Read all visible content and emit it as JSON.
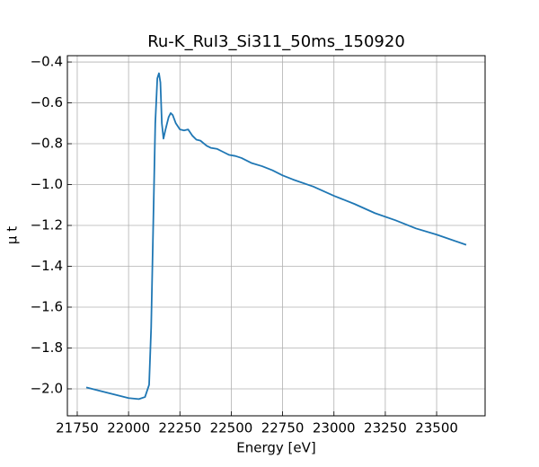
{
  "chart_data": {
    "type": "line",
    "title": "Ru-K_RuI3_Si311_50ms_150920",
    "x_label": "Energy [eV]",
    "y_label": "μ t",
    "x": [
      21794,
      21900,
      22000,
      22050,
      22080,
      22100,
      22110,
      22120,
      22130,
      22140,
      22148,
      22155,
      22162,
      22170,
      22180,
      22195,
      22205,
      22215,
      22230,
      22250,
      22270,
      22290,
      22310,
      22330,
      22350,
      22380,
      22400,
      22430,
      22460,
      22490,
      22520,
      22550,
      22600,
      22650,
      22700,
      22750,
      22800,
      22900,
      23000,
      23100,
      23200,
      23300,
      23400,
      23500,
      23644
    ],
    "series": [
      {
        "name": "μ t",
        "color": "#1f77b4",
        "values": [
          -1.993,
          -2.02,
          -2.045,
          -2.05,
          -2.04,
          -1.98,
          -1.7,
          -1.2,
          -0.7,
          -0.48,
          -0.455,
          -0.5,
          -0.7,
          -0.775,
          -0.73,
          -0.67,
          -0.65,
          -0.66,
          -0.7,
          -0.73,
          -0.735,
          -0.73,
          -0.76,
          -0.78,
          -0.785,
          -0.81,
          -0.82,
          -0.825,
          -0.84,
          -0.855,
          -0.86,
          -0.87,
          -0.895,
          -0.91,
          -0.93,
          -0.955,
          -0.975,
          -1.01,
          -1.055,
          -1.095,
          -1.14,
          -1.175,
          -1.215,
          -1.245,
          -1.295
        ]
      }
    ],
    "xlim": [
      21702,
      23736
    ],
    "ylim": [
      -2.132,
      -0.369
    ],
    "xticks": [
      21750,
      22000,
      22250,
      22500,
      22750,
      23000,
      23250,
      23500
    ],
    "yticks": [
      {
        "value": -2.0,
        "label": "−2.0"
      },
      {
        "value": -1.8,
        "label": "−1.8"
      },
      {
        "value": -1.6,
        "label": "−1.6"
      },
      {
        "value": -1.4,
        "label": "−1.4"
      },
      {
        "value": -1.2,
        "label": "−1.2"
      },
      {
        "value": -1.0,
        "label": "−1.0"
      },
      {
        "value": -0.8,
        "label": "−0.8"
      },
      {
        "value": -0.6,
        "label": "−0.6"
      },
      {
        "value": -0.4,
        "label": "−0.4"
      }
    ],
    "grid": true
  }
}
